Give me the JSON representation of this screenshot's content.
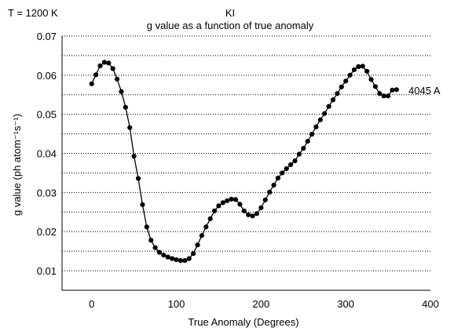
{
  "chart_data": {
    "type": "line",
    "temperature_label": "T = 1200 K",
    "title": "KI",
    "subtitle": "g value as a function of true anomaly",
    "xlabel": "True Anomaly (Degrees)",
    "ylabel": "g value (ph atom⁻¹s⁻¹)",
    "series_label": "4045 A",
    "xlim": [
      -35,
      400
    ],
    "ylim": [
      0.005,
      0.07
    ],
    "x_ticks": [
      0,
      100,
      200,
      300,
      400
    ],
    "x_tick_labels": [
      "0",
      "100",
      "200",
      "300",
      "400"
    ],
    "y_ticks": [
      0.01,
      0.02,
      0.03,
      0.04,
      0.05,
      0.06,
      0.07
    ],
    "y_tick_labels": [
      "0.01",
      "0.02",
      "0.03",
      "0.04",
      "0.05",
      "0.06",
      "0.07"
    ],
    "grid": "horizontal dotted",
    "marker": "filled circle",
    "color": "#000000",
    "x": [
      0,
      5,
      10,
      15,
      20,
      25,
      30,
      35,
      40,
      45,
      50,
      55,
      60,
      65,
      70,
      75,
      80,
      85,
      90,
      95,
      100,
      105,
      110,
      115,
      120,
      125,
      130,
      135,
      140,
      145,
      150,
      155,
      160,
      165,
      170,
      175,
      180,
      185,
      190,
      195,
      200,
      205,
      210,
      215,
      220,
      225,
      230,
      235,
      240,
      245,
      250,
      255,
      260,
      265,
      270,
      275,
      280,
      285,
      290,
      295,
      300,
      305,
      310,
      315,
      320,
      325,
      330,
      335,
      340,
      345,
      350,
      355,
      360
    ],
    "y": [
      0.0578,
      0.0601,
      0.0624,
      0.0633,
      0.0631,
      0.0617,
      0.059,
      0.0558,
      0.0518,
      0.0466,
      0.0393,
      0.0336,
      0.0269,
      0.0212,
      0.0178,
      0.0159,
      0.0147,
      0.014,
      0.0135,
      0.0131,
      0.0128,
      0.0126,
      0.0126,
      0.0131,
      0.0144,
      0.0166,
      0.019,
      0.0212,
      0.0233,
      0.0253,
      0.0266,
      0.0274,
      0.0279,
      0.0283,
      0.0282,
      0.027,
      0.0253,
      0.0243,
      0.024,
      0.0246,
      0.0261,
      0.0281,
      0.0301,
      0.0319,
      0.0337,
      0.035,
      0.0361,
      0.0371,
      0.0381,
      0.0398,
      0.0413,
      0.0431,
      0.0449,
      0.0468,
      0.0486,
      0.0502,
      0.052,
      0.0537,
      0.0553,
      0.057,
      0.0585,
      0.06,
      0.0614,
      0.0622,
      0.0623,
      0.061,
      0.0589,
      0.0571,
      0.0553,
      0.0547,
      0.0547,
      0.0562,
      0.0563
    ]
  }
}
